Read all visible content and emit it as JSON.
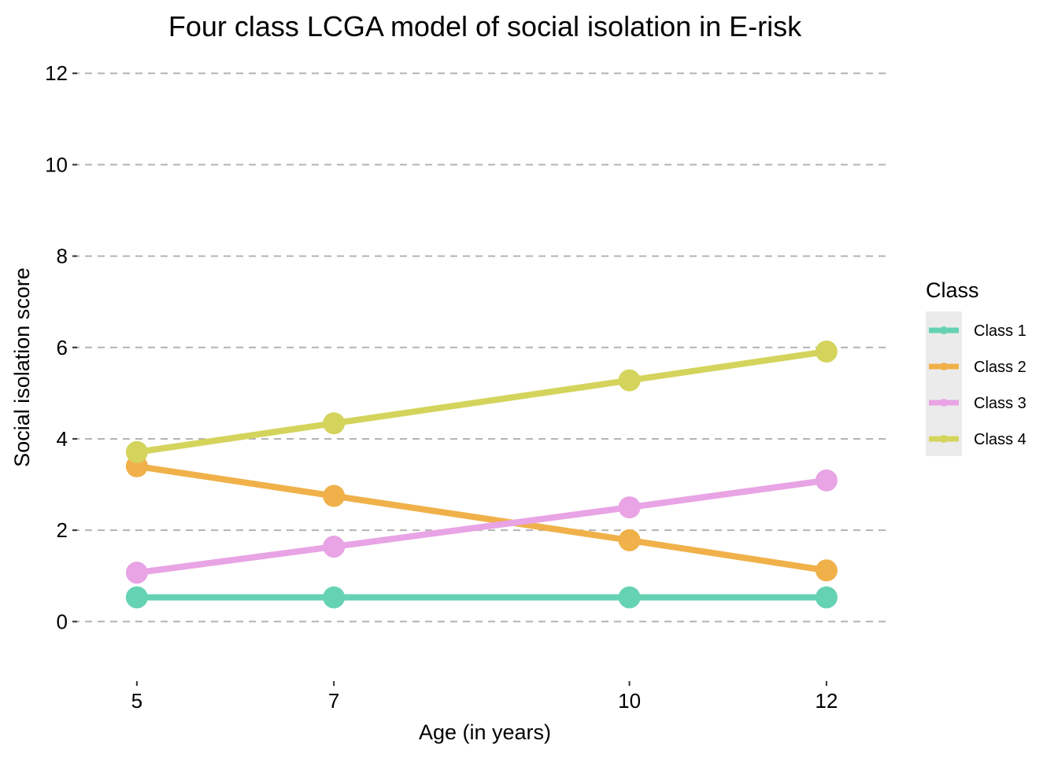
{
  "chart_data": {
    "type": "line",
    "title": "Four class LCGA model of social isolation in E-risk",
    "xlabel": "Age (in years)",
    "ylabel": "Social isolation score",
    "x": [
      5,
      7,
      10,
      12
    ],
    "xlim": [
      4.25,
      12.8
    ],
    "ylim": [
      -1.2,
      12.4
    ],
    "xticks": [
      "5",
      "7",
      "10",
      "12"
    ],
    "yticks": [
      "0",
      "2",
      "4",
      "6",
      "8",
      "10",
      "12"
    ],
    "grid": "horizontal dashed",
    "legend": {
      "title": "Class",
      "position": "right"
    },
    "series": [
      {
        "name": "Class 1",
        "color": "#66D2B4",
        "values": [
          0.53,
          0.53,
          0.53,
          0.53
        ]
      },
      {
        "name": "Class 2",
        "color": "#F0B14A",
        "values": [
          3.4,
          2.75,
          1.78,
          1.12
        ]
      },
      {
        "name": "Class 3",
        "color": "#E8A4E4",
        "values": [
          1.07,
          1.64,
          2.5,
          3.09
        ]
      },
      {
        "name": "Class 4",
        "color": "#D4D45C",
        "values": [
          3.71,
          4.34,
          5.28,
          5.91
        ]
      }
    ]
  }
}
